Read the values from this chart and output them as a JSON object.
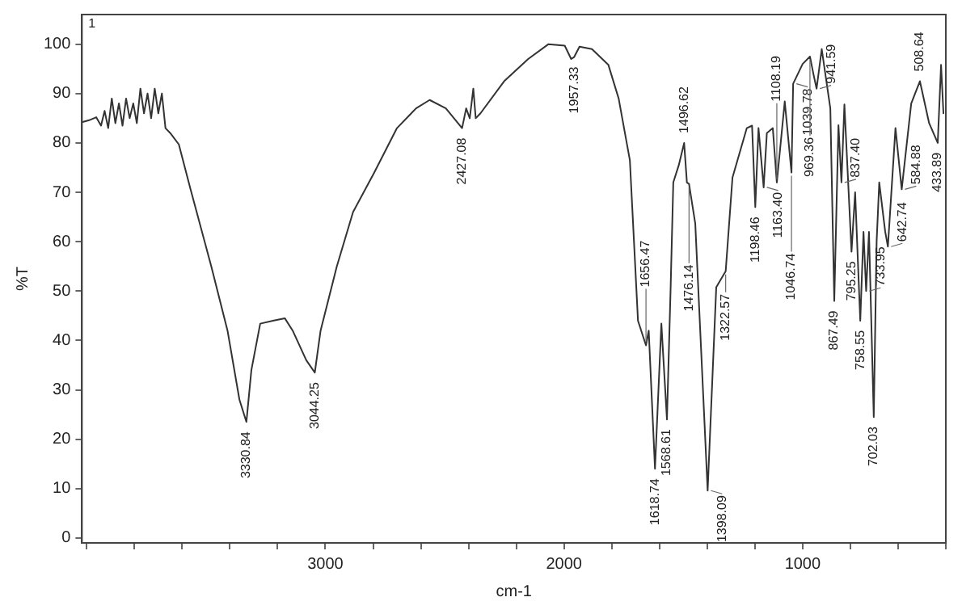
{
  "chart_data": {
    "type": "line",
    "xlabel": "cm-1",
    "ylabel": "%T",
    "xlim": [
      4020,
      400
    ],
    "ylim": [
      -1,
      106
    ],
    "xticks": [
      {
        "value": 4000,
        "label": null
      },
      {
        "value": 3800,
        "label": null
      },
      {
        "value": 3600,
        "label": null
      },
      {
        "value": 3400,
        "label": null
      },
      {
        "value": 3200,
        "label": null
      },
      3000,
      {
        "value": 2800,
        "label": null
      },
      {
        "value": 2600,
        "label": null
      },
      {
        "value": 2400,
        "label": null
      },
      {
        "value": 2200,
        "label": null
      },
      2000,
      {
        "value": 1800,
        "label": null
      },
      {
        "value": 1600,
        "label": null
      },
      {
        "value": 1400,
        "label": null
      },
      {
        "value": 1200,
        "label": null
      },
      1000,
      {
        "value": 800,
        "label": null
      },
      {
        "value": 600,
        "label": null
      },
      {
        "value": 400,
        "label": null
      }
    ],
    "yticks": [
      0,
      10,
      20,
      30,
      40,
      50,
      60,
      70,
      80,
      90,
      100
    ],
    "grid": false,
    "legend": false,
    "marker": "none",
    "line_style": "solid",
    "series": [
      {
        "color": "#333333",
        "x": [
          4020,
          3990,
          3960,
          3940,
          3925,
          3910,
          3895,
          3880,
          3865,
          3850,
          3835,
          3820,
          3805,
          3790,
          3775,
          3760,
          3745,
          3730,
          3715,
          3700,
          3685,
          3670,
          3650,
          3614,
          3567,
          3478,
          3410,
          3360,
          3330.84,
          3310,
          3273,
          3220,
          3170,
          3137,
          3080,
          3044.25,
          3020,
          2952,
          2884,
          2795,
          2700,
          2620,
          2563,
          2495,
          2427.08,
          2410,
          2395,
          2380,
          2370,
          2350,
          2249,
          2150,
          2065,
          1997,
          1970,
          1957.33,
          1935,
          1883,
          1814,
          1771,
          1724,
          1690,
          1656.47,
          1645,
          1618.74,
          1592,
          1568.61,
          1553,
          1542,
          1519,
          1496.62,
          1485,
          1476.14,
          1450,
          1398.09,
          1362,
          1322.57,
          1294,
          1234,
          1212,
          1198.46,
          1185,
          1163.4,
          1150,
          1125,
          1108.19,
          1075,
          1046.74,
          1039.78,
          1000,
          969.36,
          955,
          941.59,
          920,
          884,
          867.49,
          850,
          837.4,
          825,
          795.25,
          780,
          758.55,
          745,
          733.95,
          722,
          702.03,
          690,
          679,
          654,
          642.74,
          611,
          584.88,
          545,
          529,
          508.64,
          470,
          433.89,
          420,
          410
        ],
        "values": [
          84.2,
          84.6,
          85.2,
          83.5,
          86.5,
          83,
          89,
          84,
          88,
          83.5,
          89,
          85,
          88,
          84,
          91,
          86,
          90,
          85,
          91,
          86,
          90,
          83,
          82,
          79.7,
          71,
          55,
          42,
          28,
          23.5,
          34,
          43.4,
          44,
          44.5,
          42,
          36,
          33.5,
          42,
          55,
          66,
          74,
          83,
          87,
          88.7,
          87,
          83,
          87,
          85,
          91,
          85,
          86,
          92.6,
          97,
          100,
          99.7,
          97,
          97.4,
          99.5,
          99,
          95.8,
          89,
          76.5,
          44,
          39,
          42,
          14,
          43.4,
          24,
          51,
          72,
          75.5,
          80,
          72,
          71.7,
          63.7,
          9.6,
          50.8,
          54,
          73,
          83,
          83.5,
          67,
          83,
          71,
          82,
          83,
          72,
          88.4,
          74,
          92,
          96,
          97.5,
          94,
          91,
          99,
          87,
          48,
          83.6,
          72,
          87.8,
          58,
          70,
          44,
          62,
          50,
          62,
          24.5,
          60,
          72,
          62,
          59,
          83,
          70.6,
          88,
          90,
          92.5,
          84,
          80,
          95.8,
          86
        ]
      }
    ],
    "annotations": [
      "1",
      {
        "text": "3330.84",
        "x": 3330.84,
        "y": 23.5
      },
      {
        "text": "3044.25",
        "x": 3044.25,
        "y": 33.5
      },
      {
        "text": "2427.08",
        "x": 2427.08,
        "y": 83
      },
      {
        "text": "1957.33",
        "x": 1957.33,
        "y": 97.4
      },
      {
        "text": "1656.47",
        "x": 1656.47,
        "y": 39
      },
      {
        "text": "1618.74",
        "x": 1618.74,
        "y": 14
      },
      {
        "text": "1568.61",
        "x": 1568.61,
        "y": 24
      },
      {
        "text": "1496.62",
        "x": 1496.62,
        "y": 80
      },
      {
        "text": "1476.14",
        "x": 1476.14,
        "y": 71.7
      },
      {
        "text": "1398.09",
        "x": 1398.09,
        "y": 9.6
      },
      {
        "text": "1322.57",
        "x": 1322.57,
        "y": 54
      },
      {
        "text": "1198.46",
        "x": 1198.46,
        "y": 67
      },
      {
        "text": "1163.40",
        "x": 1163.4,
        "y": 71
      },
      {
        "text": "1108.19",
        "x": 1108.19,
        "y": 72
      },
      {
        "text": "1046.74",
        "x": 1046.74,
        "y": 74
      },
      {
        "text": "1039.78",
        "x": 1039.78,
        "y": 92
      },
      {
        "text": "969.36",
        "x": 969.36,
        "y": 97.5
      },
      {
        "text": "941.59",
        "x": 941.59,
        "y": 91
      },
      {
        "text": "867.49",
        "x": 867.49,
        "y": 48
      },
      {
        "text": "837.40",
        "x": 837.4,
        "y": 72
      },
      {
        "text": "795.25",
        "x": 795.25,
        "y": 58
      },
      {
        "text": "758.55",
        "x": 758.55,
        "y": 44
      },
      {
        "text": "733.95",
        "x": 733.95,
        "y": 50
      },
      {
        "text": "702.03",
        "x": 702.03,
        "y": 24.5
      },
      {
        "text": "642.74",
        "x": 642.74,
        "y": 59
      },
      {
        "text": "584.88",
        "x": 584.88,
        "y": 70.6
      },
      {
        "text": "508.64",
        "x": 508.64,
        "y": 92.5
      },
      {
        "text": "433.89",
        "x": 433.89,
        "y": 80
      }
    ]
  }
}
